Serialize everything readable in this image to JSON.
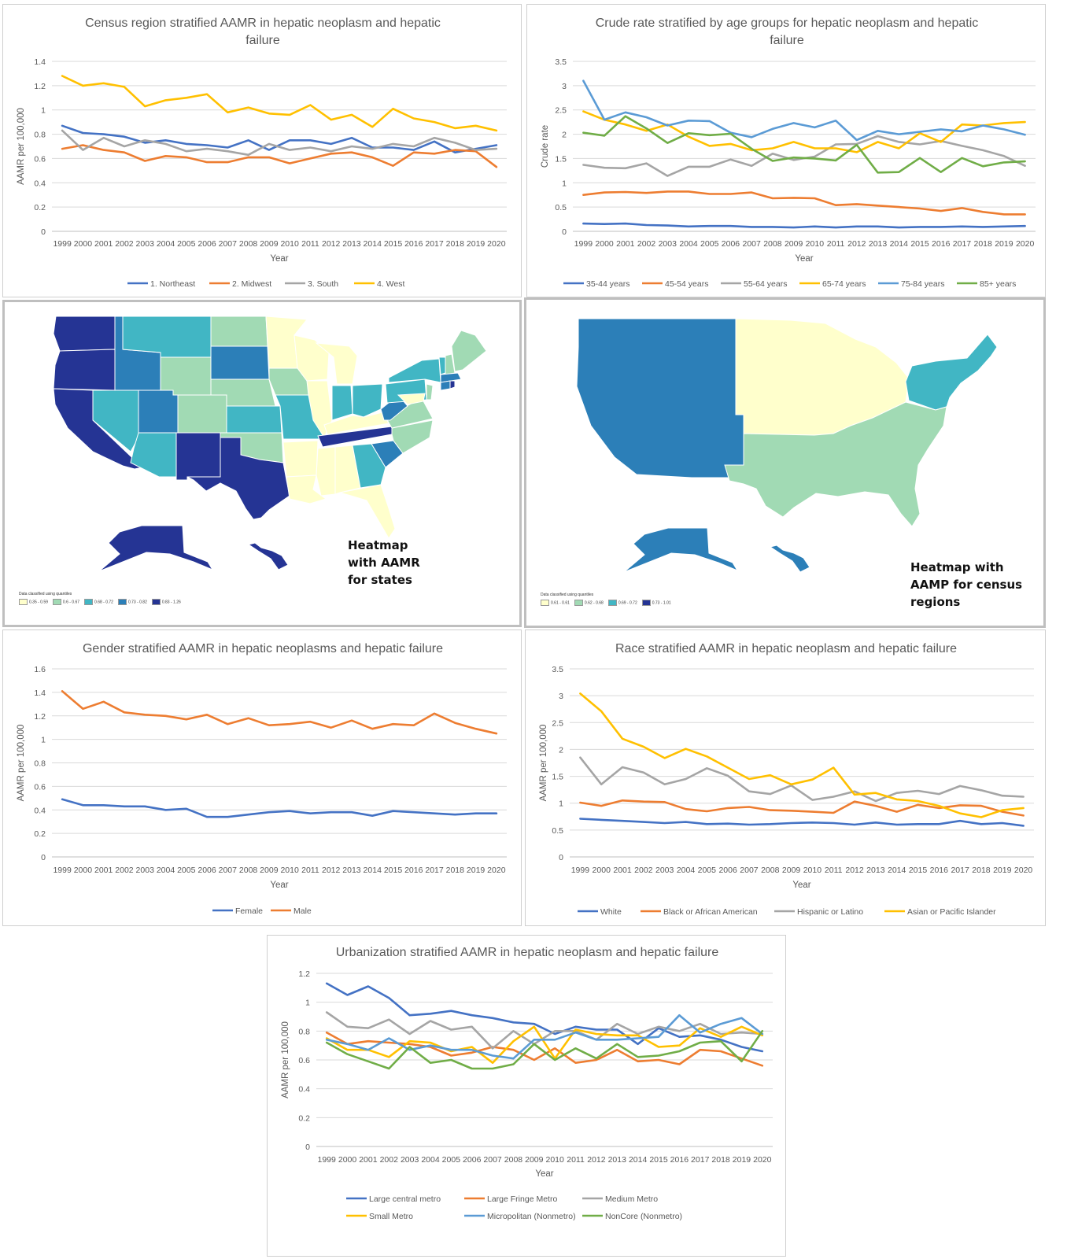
{
  "colors": {
    "blue": "#4472C4",
    "orange": "#ED7D31",
    "gray": "#A5A5A5",
    "yellow": "#FFC000",
    "lightblue": "#5B9BD5",
    "green": "#70AD47",
    "q1": "#FFFFCC",
    "q2": "#A1DAB4",
    "q3": "#41B6C4",
    "q4": "#2C7FB8",
    "q5": "#253494"
  },
  "years": [
    "1999",
    "2000",
    "2001",
    "2002",
    "2003",
    "2004",
    "2005",
    "2006",
    "2007",
    "2008",
    "2009",
    "2010",
    "2011",
    "2012",
    "2013",
    "2014",
    "2015",
    "2016",
    "2017",
    "2018",
    "2019",
    "2020"
  ],
  "chart_data": [
    {
      "type": "line",
      "title_lines": [
        "Census region stratified AAMR in hepatic neoplasm and hepatic",
        "failure"
      ],
      "xlabel": "Year",
      "ylabel": "AAMR per 100,000",
      "ylim": [
        0,
        1.4
      ],
      "yticks": [
        "0",
        "0.2",
        "0.4",
        "0.6",
        "0.8",
        "1",
        "1.2",
        "1.4"
      ],
      "grid": true,
      "legend": "bottom",
      "series": [
        {
          "name": "1. Northeast",
          "color": "#4472C4",
          "values": [
            0.87,
            0.81,
            0.8,
            0.78,
            0.73,
            0.75,
            0.72,
            0.71,
            0.69,
            0.75,
            0.67,
            0.75,
            0.75,
            0.72,
            0.77,
            0.69,
            0.69,
            0.67,
            0.74,
            0.65,
            0.68,
            0.71
          ]
        },
        {
          "name": "2. Midwest",
          "color": "#ED7D31",
          "values": [
            0.68,
            0.71,
            0.67,
            0.65,
            0.58,
            0.62,
            0.61,
            0.57,
            0.57,
            0.61,
            0.61,
            0.56,
            0.6,
            0.64,
            0.65,
            0.61,
            0.54,
            0.65,
            0.64,
            0.67,
            0.66,
            0.53
          ]
        },
        {
          "name": "3. South",
          "color": "#A5A5A5",
          "values": [
            0.83,
            0.67,
            0.77,
            0.7,
            0.75,
            0.72,
            0.66,
            0.68,
            0.66,
            0.63,
            0.72,
            0.67,
            0.69,
            0.66,
            0.7,
            0.68,
            0.72,
            0.7,
            0.77,
            0.73,
            0.67,
            0.68
          ]
        },
        {
          "name": "4. West",
          "color": "#FFC000",
          "values": [
            1.28,
            1.2,
            1.22,
            1.19,
            1.03,
            1.08,
            1.1,
            1.13,
            0.98,
            1.02,
            0.97,
            0.96,
            1.04,
            0.92,
            0.96,
            0.86,
            1.01,
            0.93,
            0.9,
            0.85,
            0.87,
            0.83
          ]
        }
      ]
    },
    {
      "type": "line",
      "title_lines": [
        "Crude rate stratified by age groups for hepatic neoplasm and hepatic",
        "failure"
      ],
      "xlabel": "Year",
      "ylabel": "Crude rate",
      "ylim": [
        0,
        3.5
      ],
      "yticks": [
        "0",
        "0.5",
        "1",
        "1.5",
        "2",
        "2.5",
        "3",
        "3.5"
      ],
      "grid": true,
      "legend": "bottom",
      "series": [
        {
          "name": "35-44 years",
          "color": "#4472C4",
          "values": [
            0.16,
            0.15,
            0.16,
            0.13,
            0.12,
            0.1,
            0.11,
            0.11,
            0.09,
            0.09,
            0.08,
            0.1,
            0.08,
            0.1,
            0.1,
            0.08,
            0.09,
            0.09,
            0.1,
            0.09,
            0.1,
            0.11
          ]
        },
        {
          "name": "45-54 years",
          "color": "#ED7D31",
          "values": [
            0.75,
            0.8,
            0.81,
            0.79,
            0.82,
            0.82,
            0.77,
            0.77,
            0.8,
            0.68,
            0.69,
            0.68,
            0.54,
            0.56,
            0.53,
            0.5,
            0.47,
            0.42,
            0.48,
            0.4,
            0.35,
            0.35
          ]
        },
        {
          "name": "55-64 years",
          "color": "#A5A5A5",
          "values": [
            1.37,
            1.31,
            1.3,
            1.4,
            1.14,
            1.33,
            1.33,
            1.48,
            1.35,
            1.6,
            1.47,
            1.54,
            1.79,
            1.8,
            1.96,
            1.84,
            1.79,
            1.86,
            1.76,
            1.67,
            1.55,
            1.35
          ]
        },
        {
          "name": "65-74 years",
          "color": "#FFC000",
          "values": [
            2.47,
            2.3,
            2.2,
            2.07,
            2.2,
            1.95,
            1.76,
            1.8,
            1.67,
            1.71,
            1.84,
            1.71,
            1.71,
            1.63,
            1.84,
            1.71,
            2.02,
            1.84,
            2.2,
            2.18,
            2.23,
            2.25
          ]
        },
        {
          "name": "75-84 years",
          "color": "#5B9BD5",
          "values": [
            3.1,
            2.3,
            2.45,
            2.35,
            2.18,
            2.28,
            2.27,
            2.03,
            1.94,
            2.11,
            2.23,
            2.14,
            2.28,
            1.88,
            2.07,
            2.0,
            2.05,
            2.1,
            2.06,
            2.18,
            2.1,
            1.99
          ]
        },
        {
          "name": "85+ years",
          "color": "#70AD47",
          "values": [
            2.03,
            1.97,
            2.37,
            2.12,
            1.82,
            2.02,
            1.98,
            2.01,
            1.7,
            1.45,
            1.52,
            1.5,
            1.46,
            1.78,
            1.21,
            1.22,
            1.51,
            1.22,
            1.51,
            1.34,
            1.42,
            1.44
          ]
        }
      ]
    },
    {
      "type": "line",
      "title_lines": [
        "Gender stratified AAMR in hepatic neoplasms and hepatic failure"
      ],
      "xlabel": "Year",
      "ylabel": "AAMR per 100,000",
      "ylim": [
        0,
        1.6
      ],
      "yticks": [
        "0",
        "0.2",
        "0.4",
        "0.6",
        "0.8",
        "1",
        "1.2",
        "1.4",
        "1.6"
      ],
      "grid": true,
      "legend": "bottom",
      "series": [
        {
          "name": "Female",
          "color": "#4472C4",
          "values": [
            0.49,
            0.44,
            0.44,
            0.43,
            0.43,
            0.4,
            0.41,
            0.34,
            0.34,
            0.36,
            0.38,
            0.39,
            0.37,
            0.38,
            0.38,
            0.35,
            0.39,
            0.38,
            0.37,
            0.36,
            0.37,
            0.37
          ]
        },
        {
          "name": "Male",
          "color": "#ED7D31",
          "values": [
            1.41,
            1.26,
            1.32,
            1.23,
            1.21,
            1.2,
            1.17,
            1.21,
            1.13,
            1.18,
            1.12,
            1.13,
            1.15,
            1.1,
            1.16,
            1.09,
            1.13,
            1.12,
            1.22,
            1.14,
            1.09,
            1.05
          ]
        }
      ]
    },
    {
      "type": "line",
      "title_lines": [
        "Race stratified AAMR in hepatic neoplasm and hepatic failure"
      ],
      "xlabel": "Year",
      "ylabel": "AAMR per 100,000",
      "ylim": [
        0,
        3.5
      ],
      "yticks": [
        "0",
        "0.5",
        "1",
        "1.5",
        "2",
        "2.5",
        "3",
        "3.5"
      ],
      "grid": true,
      "legend": "bottom",
      "series": [
        {
          "name": "White",
          "color": "#4472C4",
          "values": [
            0.71,
            0.69,
            0.67,
            0.65,
            0.63,
            0.65,
            0.61,
            0.62,
            0.6,
            0.61,
            0.63,
            0.64,
            0.63,
            0.6,
            0.64,
            0.6,
            0.61,
            0.61,
            0.67,
            0.61,
            0.63,
            0.58
          ]
        },
        {
          "name": "Black or African American",
          "color": "#ED7D31",
          "values": [
            1.01,
            0.95,
            1.05,
            1.03,
            1.02,
            0.89,
            0.85,
            0.91,
            0.93,
            0.87,
            0.86,
            0.84,
            0.82,
            1.03,
            0.95,
            0.84,
            0.97,
            0.91,
            0.96,
            0.95,
            0.84,
            0.77
          ]
        },
        {
          "name": "Hispanic or Latino",
          "color": "#A5A5A5",
          "values": [
            1.85,
            1.35,
            1.67,
            1.57,
            1.35,
            1.45,
            1.65,
            1.51,
            1.22,
            1.17,
            1.33,
            1.06,
            1.12,
            1.22,
            1.04,
            1.19,
            1.23,
            1.17,
            1.32,
            1.24,
            1.14,
            1.12
          ]
        },
        {
          "name": "Asian or Pacific Islander",
          "color": "#FFC000",
          "values": [
            3.04,
            2.71,
            2.2,
            2.05,
            1.84,
            2.01,
            1.87,
            1.66,
            1.45,
            1.52,
            1.35,
            1.44,
            1.66,
            1.16,
            1.19,
            1.07,
            1.04,
            0.95,
            0.81,
            0.74,
            0.87,
            0.91
          ]
        }
      ]
    },
    {
      "type": "line",
      "title_lines": [
        "Urbanization stratified AAMR in hepatic neoplasm and hepatic failure"
      ],
      "xlabel": "Year",
      "ylabel": "AAMR per 100,000",
      "ylim": [
        0,
        1.2
      ],
      "yticks": [
        "0",
        "0.2",
        "0.4",
        "0.6",
        "0.8",
        "1",
        "1.2"
      ],
      "grid": true,
      "legend": "bottom",
      "series": [
        {
          "name": "Large central metro",
          "color": "#4472C4",
          "values": [
            1.13,
            1.05,
            1.11,
            1.03,
            0.91,
            0.92,
            0.94,
            0.91,
            0.89,
            0.86,
            0.85,
            0.78,
            0.83,
            0.81,
            0.81,
            0.71,
            0.82,
            0.76,
            0.77,
            0.74,
            0.69,
            0.66
          ]
        },
        {
          "name": "Large Fringe Metro",
          "color": "#ED7D31",
          "values": [
            0.79,
            0.71,
            0.73,
            0.72,
            0.71,
            0.69,
            0.63,
            0.65,
            0.69,
            0.67,
            0.6,
            0.68,
            0.58,
            0.6,
            0.67,
            0.59,
            0.6,
            0.57,
            0.67,
            0.66,
            0.61,
            0.56
          ]
        },
        {
          "name": "Medium Metro",
          "color": "#A5A5A5",
          "values": [
            0.93,
            0.83,
            0.82,
            0.88,
            0.78,
            0.87,
            0.81,
            0.83,
            0.68,
            0.8,
            0.71,
            0.8,
            0.8,
            0.74,
            0.85,
            0.78,
            0.83,
            0.8,
            0.85,
            0.78,
            0.79,
            0.78
          ]
        },
        {
          "name": "Small Metro",
          "color": "#FFC000",
          "values": [
            0.75,
            0.67,
            0.67,
            0.62,
            0.73,
            0.72,
            0.66,
            0.69,
            0.58,
            0.73,
            0.83,
            0.61,
            0.81,
            0.78,
            0.77,
            0.77,
            0.69,
            0.7,
            0.82,
            0.76,
            0.83,
            0.77
          ]
        },
        {
          "name": "Micropolitan (Nonmetro)",
          "color": "#5B9BD5",
          "values": [
            0.74,
            0.71,
            0.67,
            0.75,
            0.67,
            0.7,
            0.67,
            0.67,
            0.63,
            0.61,
            0.74,
            0.74,
            0.79,
            0.74,
            0.74,
            0.75,
            0.76,
            0.91,
            0.79,
            0.85,
            0.89,
            0.78
          ]
        },
        {
          "name": "NonCore (Nonmetro)",
          "color": "#70AD47",
          "values": [
            0.72,
            0.64,
            0.59,
            0.54,
            0.69,
            0.58,
            0.6,
            0.54,
            0.54,
            0.57,
            0.71,
            0.6,
            0.68,
            0.61,
            0.71,
            0.62,
            0.63,
            0.66,
            0.72,
            0.73,
            0.59,
            0.8
          ]
        }
      ]
    }
  ],
  "maps": {
    "states": {
      "caption_lines": [
        "Heatmap",
        "with AAMR",
        "for states"
      ],
      "legend_title": "Data classified using quantiles",
      "legend": [
        {
          "label": "0.35 - 0.59",
          "color": "#FFFFCC"
        },
        {
          "label": "0.6 - 0.67",
          "color": "#A1DAB4"
        },
        {
          "label": "0.68 - 0.72",
          "color": "#41B6C4"
        },
        {
          "label": "0.73 - 0.82",
          "color": "#2C7FB8"
        },
        {
          "label": "0.83 - 1.26",
          "color": "#253494"
        }
      ]
    },
    "regions": {
      "caption_lines": [
        "Heatmap with",
        "AAMP for census",
        "regions"
      ],
      "legend_title": "Data classified using quantiles",
      "legend": [
        {
          "label": "0.61 - 0.61",
          "color": "#FFFFCC"
        },
        {
          "label": "0.62 - 0.68",
          "color": "#A1DAB4"
        },
        {
          "label": "0.69 - 0.72",
          "color": "#41B6C4"
        },
        {
          "label": "0.73 - 1.01",
          "color": "#253494"
        }
      ]
    }
  }
}
